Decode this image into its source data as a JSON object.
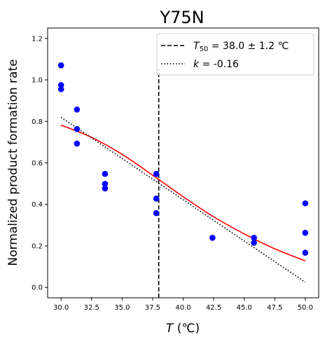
{
  "chart_data": {
    "type": "scatter",
    "title": "Y75N",
    "xlabel": {
      "italic": "T",
      "rest": " (℃)"
    },
    "ylabel": "Normalized product formation rate",
    "xlim": [
      28.9,
      51.1
    ],
    "ylim": [
      -0.05,
      1.25
    ],
    "x_ticks": [
      30.0,
      32.5,
      35.0,
      37.5,
      40.0,
      42.5,
      45.0,
      47.5,
      50.0
    ],
    "x_tick_labels": [
      "30.0",
      "32.5",
      "35.0",
      "37.5",
      "40.0",
      "42.5",
      "45.0",
      "47.5",
      "50.0"
    ],
    "y_ticks": [
      0.0,
      0.2,
      0.4,
      0.6,
      0.8,
      1.0,
      1.2
    ],
    "y_tick_labels": [
      "0.0",
      "0.2",
      "0.4",
      "0.6",
      "0.8",
      "1.0",
      "1.2"
    ],
    "grid": false,
    "legend_placement": "top-right",
    "points": {
      "color": "#0000ff",
      "x": [
        30.0,
        30.0,
        30.0,
        31.3,
        31.3,
        31.3,
        33.6,
        33.6,
        33.6,
        37.8,
        37.8,
        37.8,
        42.4,
        45.8,
        45.8,
        50.0,
        50.0,
        50.0
      ],
      "y": [
        1.07,
        0.975,
        0.955,
        0.857,
        0.763,
        0.693,
        0.547,
        0.499,
        0.477,
        0.547,
        0.428,
        0.358,
        0.239,
        0.239,
        0.215,
        0.405,
        0.263,
        0.167
      ]
    },
    "fit_curve": {
      "color": "#ff0000",
      "x": [
        30.0,
        32.5,
        35.0,
        37.5,
        40.0,
        42.5,
        45.0,
        47.5,
        50.0
      ],
      "y": [
        0.782,
        0.723,
        0.641,
        0.541,
        0.437,
        0.34,
        0.258,
        0.186,
        0.128
      ]
    },
    "series": [
      {
        "name": "T50 = 38.0 ± 1.2 ℃",
        "label": {
          "italic": "T",
          "sub": "50",
          "rest": " = 38.0 ± 1.2 ℃"
        },
        "style": "dashed",
        "color": "#000000",
        "x": [
          38.0,
          38.0
        ],
        "y": [
          -0.05,
          1.05
        ]
      },
      {
        "name": "k = -0.16",
        "label": {
          "italic": "k",
          "rest": " = -0.16"
        },
        "style": "dotted",
        "color": "#000000",
        "x": [
          30.0,
          50.0
        ],
        "y": [
          0.82,
          0.025
        ]
      }
    ]
  }
}
